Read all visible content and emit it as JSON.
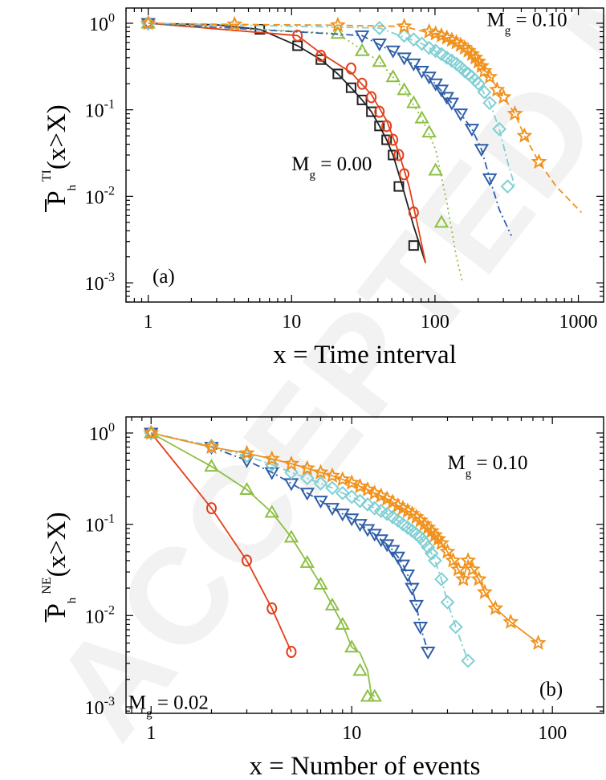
{
  "watermark": "ACCEPTED MANUSCRIPT",
  "colors": {
    "black": "#222222",
    "red": "#e2401b",
    "green": "#8dbf45",
    "blue": "#2f5fa8",
    "cyan": "#7fcfd4",
    "orange": "#f0921e"
  },
  "chart_data": [
    {
      "type": "line",
      "panel_label": "(a)",
      "xlabel": "x = Time interval",
      "ylabel": {
        "main": "P",
        "sub": "h",
        "sup": "TI",
        "tail": "(x>X)"
      },
      "xscale": "log",
      "yscale": "log",
      "xlim": [
        0.7,
        1500
      ],
      "ylim": [
        0.0006,
        1.5
      ],
      "xticks": [
        {
          "value": 1,
          "label": "1"
        },
        {
          "value": 10,
          "label": "10"
        },
        {
          "value": 100,
          "label": "100"
        },
        {
          "value": 1000,
          "label": "1000"
        }
      ],
      "yticks": [
        {
          "value": 1,
          "base": "10",
          "exp": "0"
        },
        {
          "value": 0.1,
          "base": "10",
          "exp": "-1"
        },
        {
          "value": 0.01,
          "base": "10",
          "exp": "-2"
        },
        {
          "value": 0.001,
          "base": "10",
          "exp": "-3"
        }
      ],
      "annotations": [
        {
          "main": "M",
          "sub": "g",
          "tail": " = 0.00",
          "x": 10,
          "y": 0.02
        },
        {
          "main": "M",
          "sub": "g",
          "tail": " = 0.10",
          "x": 230,
          "y": 0.93
        }
      ],
      "series": [
        {
          "color": "black",
          "marker": "square",
          "dash": "solid",
          "x": [
            1,
            6,
            11,
            16,
            21,
            26,
            31,
            36,
            41,
            46,
            51,
            56,
            71
          ],
          "y": [
            1.0,
            0.85,
            0.55,
            0.38,
            0.26,
            0.18,
            0.13,
            0.095,
            0.065,
            0.045,
            0.03,
            0.013,
            0.0027
          ],
          "line_x": [
            1,
            3,
            6,
            11,
            16,
            21,
            26,
            31,
            36,
            41,
            46,
            51,
            56,
            61,
            71,
            86
          ],
          "line_y": [
            1.0,
            0.96,
            0.85,
            0.55,
            0.38,
            0.26,
            0.18,
            0.13,
            0.095,
            0.065,
            0.045,
            0.03,
            0.018,
            0.011,
            0.0045,
            0.0017
          ]
        },
        {
          "color": "red",
          "marker": "circle",
          "dash": "solid",
          "x": [
            1,
            11,
            16,
            26,
            31,
            36,
            41,
            46,
            51,
            56,
            61,
            71
          ],
          "y": [
            1.0,
            0.72,
            0.42,
            0.3,
            0.2,
            0.14,
            0.095,
            0.065,
            0.045,
            0.03,
            0.018,
            0.0065
          ],
          "line_x": [
            1,
            11,
            16,
            26,
            36,
            46,
            56,
            66,
            76,
            86
          ],
          "line_y": [
            1.0,
            0.72,
            0.45,
            0.27,
            0.15,
            0.075,
            0.032,
            0.013,
            0.0045,
            0.0017
          ]
        },
        {
          "color": "green",
          "marker": "triangle-up",
          "dash": "dotted",
          "x": [
            1,
            21,
            31,
            41,
            51,
            61,
            71,
            81,
            91,
            101,
            111
          ],
          "y": [
            1.0,
            0.76,
            0.48,
            0.36,
            0.24,
            0.17,
            0.12,
            0.08,
            0.055,
            0.02,
            0.005
          ],
          "line_x": [
            1,
            21,
            41,
            61,
            81,
            101,
            121,
            141,
            156
          ],
          "line_y": [
            1.0,
            0.76,
            0.36,
            0.17,
            0.08,
            0.035,
            0.0085,
            0.002,
            0.001
          ]
        },
        {
          "color": "blue",
          "marker": "triangle-down",
          "dash": "dashdot",
          "x": [
            1,
            31,
            41,
            51,
            61,
            71,
            81,
            91,
            101,
            111,
            121,
            131,
            151,
            181,
            211,
            241
          ],
          "y": [
            1.0,
            0.72,
            0.58,
            0.48,
            0.4,
            0.34,
            0.28,
            0.24,
            0.2,
            0.17,
            0.14,
            0.12,
            0.09,
            0.06,
            0.035,
            0.016
          ],
          "line_x": [
            1,
            31,
            61,
            91,
            121,
            151,
            181,
            211,
            241,
            281,
            341
          ],
          "line_y": [
            1.0,
            0.72,
            0.4,
            0.24,
            0.14,
            0.09,
            0.06,
            0.035,
            0.016,
            0.007,
            0.0035
          ]
        },
        {
          "color": "cyan",
          "marker": "diamond",
          "dash": "dashdot",
          "x": [
            1,
            41,
            61,
            71,
            81,
            91,
            101,
            111,
            121,
            131,
            141,
            151,
            161,
            171,
            181,
            191,
            201,
            221,
            241,
            281,
            321
          ],
          "y": [
            1.0,
            0.88,
            0.72,
            0.65,
            0.58,
            0.52,
            0.48,
            0.44,
            0.4,
            0.37,
            0.34,
            0.31,
            0.28,
            0.26,
            0.24,
            0.22,
            0.2,
            0.16,
            0.12,
            0.06,
            0.013
          ],
          "line_x": [
            1,
            41,
            81,
            121,
            161,
            201,
            241,
            281,
            321,
            361
          ],
          "line_y": [
            1.0,
            0.88,
            0.58,
            0.4,
            0.28,
            0.2,
            0.12,
            0.06,
            0.025,
            0.013
          ]
        },
        {
          "color": "orange",
          "marker": "star",
          "dash": "dashed",
          "x": [
            1,
            4,
            21,
            61,
            91,
            101,
            111,
            121,
            131,
            141,
            151,
            161,
            171,
            181,
            191,
            201,
            211,
            221,
            241,
            271,
            301,
            361,
            421,
            531
          ],
          "y": [
            1.0,
            0.97,
            0.95,
            0.92,
            0.8,
            0.76,
            0.72,
            0.68,
            0.64,
            0.6,
            0.56,
            0.52,
            0.48,
            0.44,
            0.4,
            0.36,
            0.32,
            0.28,
            0.24,
            0.17,
            0.14,
            0.09,
            0.05,
            0.025
          ],
          "line_x": [
            1,
            4,
            21,
            61,
            121,
            181,
            241,
            301,
            361,
            421,
            531,
            701,
            1051
          ],
          "line_y": [
            1.0,
            0.97,
            0.95,
            0.92,
            0.68,
            0.44,
            0.24,
            0.14,
            0.09,
            0.05,
            0.025,
            0.013,
            0.0065
          ]
        }
      ]
    },
    {
      "type": "line",
      "panel_label": "(b)",
      "xlabel": "x = Number of events",
      "ylabel": {
        "main": "P",
        "sub": "h",
        "sup": "NE",
        "tail": "(x>X)"
      },
      "xscale": "log",
      "yscale": "log",
      "xlim": [
        0.75,
        180
      ],
      "ylim": [
        0.00085,
        1.5
      ],
      "xticks": [
        {
          "value": 1,
          "label": "1"
        },
        {
          "value": 10,
          "label": "10"
        },
        {
          "value": 100,
          "label": "100"
        }
      ],
      "yticks": [
        {
          "value": 1,
          "base": "10",
          "exp": "0"
        },
        {
          "value": 0.1,
          "base": "10",
          "exp": "-1"
        },
        {
          "value": 0.01,
          "base": "10",
          "exp": "-2"
        },
        {
          "value": 0.001,
          "base": "10",
          "exp": "-3"
        }
      ],
      "annotations": [
        {
          "main": "M",
          "sub": "g",
          "tail": " = 0.02",
          "x": 0.77,
          "y": 0.00095
        },
        {
          "main": "M",
          "sub": "g",
          "tail": " = 0.10",
          "x": 30,
          "y": 0.4
        }
      ],
      "series": [
        {
          "color": "red",
          "marker": "circle",
          "dash": "solid",
          "x": [
            1,
            2,
            3,
            4,
            5
          ],
          "y": [
            1.0,
            0.15,
            0.04,
            0.012,
            0.004
          ]
        },
        {
          "color": "green",
          "marker": "triangle-up",
          "dash": "solid",
          "x": [
            1,
            2,
            3,
            4,
            5,
            6,
            7,
            8,
            9,
            10,
            11,
            12,
            13
          ],
          "y": [
            1.0,
            0.43,
            0.24,
            0.135,
            0.072,
            0.038,
            0.022,
            0.013,
            0.008,
            0.0045,
            0.0025,
            0.0013,
            0.0013
          ],
          "line_x": [
            1,
            2,
            3,
            4,
            5,
            6,
            7,
            8,
            9,
            10,
            11,
            12,
            12.5,
            13
          ],
          "line_y": [
            1.0,
            0.43,
            0.24,
            0.135,
            0.072,
            0.038,
            0.022,
            0.013,
            0.008,
            0.0045,
            0.0039,
            0.0025,
            0.0014,
            0.0013
          ]
        },
        {
          "color": "blue",
          "marker": "triangle-down",
          "dash": "dashdot",
          "x": [
            1,
            2,
            3,
            4,
            5,
            6,
            7,
            8,
            9,
            10,
            11,
            12,
            13,
            14,
            15,
            16,
            17,
            18,
            19,
            20,
            21,
            22,
            24
          ],
          "y": [
            1.0,
            0.7,
            0.5,
            0.37,
            0.28,
            0.22,
            0.18,
            0.15,
            0.13,
            0.115,
            0.1,
            0.088,
            0.078,
            0.068,
            0.06,
            0.052,
            0.044,
            0.036,
            0.028,
            0.02,
            0.013,
            0.0075,
            0.004
          ]
        },
        {
          "color": "cyan",
          "marker": "diamond",
          "dash": "dashdot",
          "x": [
            1,
            2,
            3,
            4,
            5,
            6,
            7,
            8,
            9,
            10,
            11,
            12,
            13,
            14,
            15,
            16,
            17,
            18,
            19,
            20,
            21,
            22,
            23,
            24,
            25,
            26,
            28,
            30,
            33,
            38
          ],
          "y": [
            1.0,
            0.72,
            0.56,
            0.45,
            0.37,
            0.32,
            0.28,
            0.25,
            0.22,
            0.2,
            0.18,
            0.165,
            0.15,
            0.14,
            0.13,
            0.12,
            0.11,
            0.1,
            0.092,
            0.085,
            0.078,
            0.072,
            0.064,
            0.056,
            0.048,
            0.04,
            0.025,
            0.014,
            0.0075,
            0.0032
          ]
        },
        {
          "color": "orange",
          "marker": "star",
          "dash": "solid",
          "x": [
            1,
            2,
            3,
            4,
            5,
            6,
            7,
            8,
            9,
            10,
            11,
            12,
            13,
            14,
            15,
            16,
            17,
            18,
            19,
            20,
            21,
            22,
            23,
            24,
            25,
            26,
            27,
            28,
            30,
            32,
            34,
            36,
            38,
            40,
            43,
            46,
            52,
            62,
            85
          ],
          "y": [
            1.0,
            0.7,
            0.6,
            0.52,
            0.46,
            0.41,
            0.37,
            0.34,
            0.31,
            0.285,
            0.26,
            0.24,
            0.22,
            0.205,
            0.19,
            0.175,
            0.16,
            0.15,
            0.14,
            0.13,
            0.12,
            0.11,
            0.1,
            0.092,
            0.084,
            0.076,
            0.069,
            0.062,
            0.05,
            0.04,
            0.032,
            0.025,
            0.04,
            0.032,
            0.025,
            0.018,
            0.012,
            0.0085,
            0.005
          ]
        }
      ]
    }
  ]
}
